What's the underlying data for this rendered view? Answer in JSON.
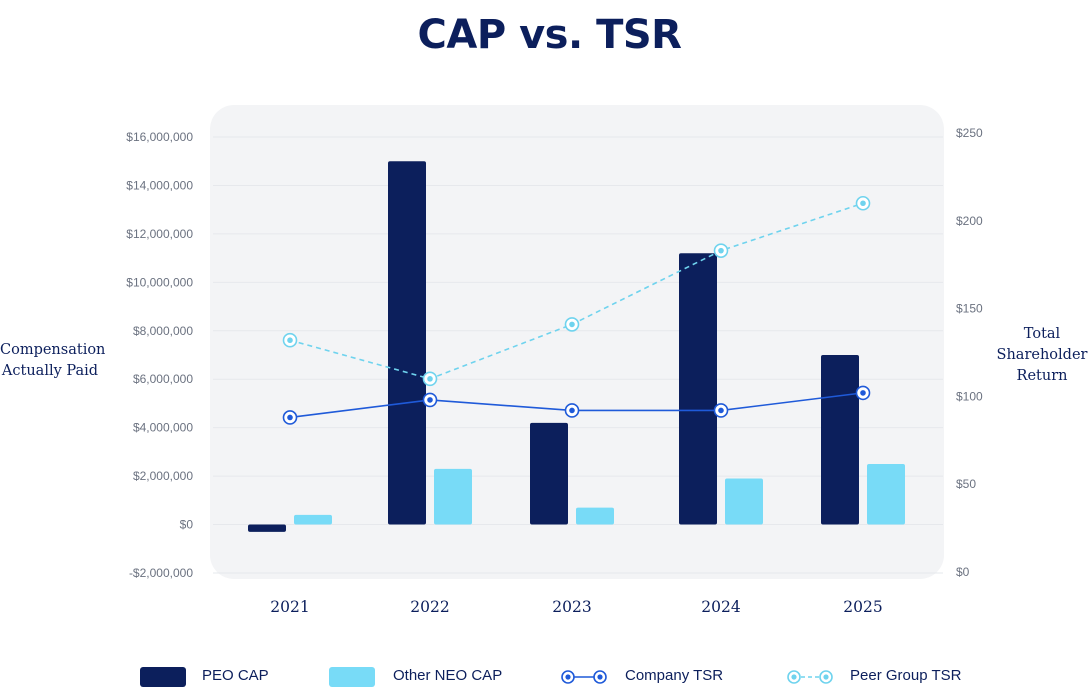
{
  "title": "CAP vs. TSR",
  "left_axis_title": "Compensation Actually Paid",
  "right_axis_title": "Total Shareholder Return",
  "colors": {
    "peo": "#0c1f5c",
    "neo": "#78dbf7",
    "company": "#1f5ad9",
    "peer": "#6fd3ee",
    "tick": "#6b7280",
    "year": "#0c1f5c",
    "grid": "#e6e8ec"
  },
  "chart_data": {
    "type": "bar",
    "title": "CAP vs. TSR",
    "categories": [
      "2021",
      "2022",
      "2023",
      "2024",
      "2025"
    ],
    "y_left": {
      "label": "Compensation Actually Paid",
      "min": -2000000,
      "max": 16000000,
      "ticks": [
        -2000000,
        0,
        2000000,
        4000000,
        6000000,
        8000000,
        10000000,
        12000000,
        14000000,
        16000000
      ],
      "tick_labels": [
        "-$2,000,000",
        "$0",
        "$2,000,000",
        "$4,000,000",
        "$6,000,000",
        "$8,000,000",
        "$10,000,000",
        "$12,000,000",
        "$14,000,000",
        "$16,000,000"
      ]
    },
    "y_right": {
      "label": "Total Shareholder Return",
      "min": 0,
      "max": 250,
      "ticks": [
        0,
        50,
        100,
        150,
        200,
        250
      ],
      "tick_labels": [
        "$0",
        "$50",
        "$100",
        "$150",
        "$200",
        "$250"
      ]
    },
    "bar_series": [
      {
        "name": "PEO CAP",
        "axis": "left",
        "values": [
          -300000,
          15000000,
          4200000,
          11200000,
          7000000
        ]
      },
      {
        "name": "Other NEO CAP",
        "axis": "left",
        "values": [
          400000,
          2300000,
          700000,
          1900000,
          2500000
        ]
      }
    ],
    "line_series": [
      {
        "name": "Company TSR",
        "axis": "right",
        "style": "solid",
        "values": [
          88,
          98,
          92,
          92,
          102
        ]
      },
      {
        "name": "Peer Group TSR",
        "axis": "right",
        "style": "dashed",
        "values": [
          132,
          110,
          141,
          183,
          210
        ]
      }
    ],
    "legend": [
      "PEO CAP",
      "Other NEO CAP",
      "Company TSR",
      "Peer Group TSR"
    ],
    "legend_position": "bottom",
    "grid": true
  }
}
